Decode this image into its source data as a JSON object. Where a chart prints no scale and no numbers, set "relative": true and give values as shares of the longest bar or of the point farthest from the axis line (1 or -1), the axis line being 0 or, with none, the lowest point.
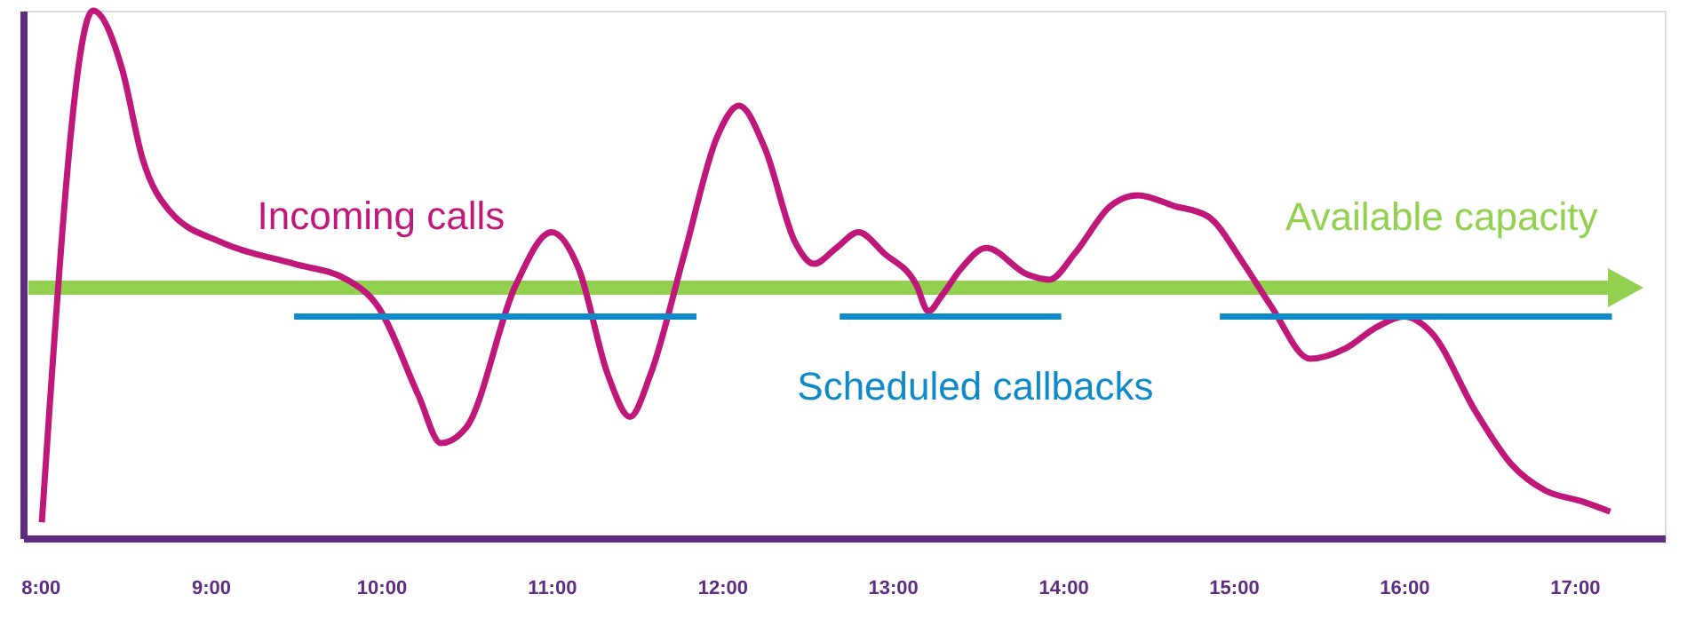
{
  "chart_data": {
    "type": "line",
    "relative": true,
    "xlim": [
      7.9,
      17.53
    ],
    "tick_labels": "x",
    "xticks": [
      {
        "value": 8,
        "label": "8:00"
      },
      {
        "value": 9,
        "label": "9:00"
      },
      {
        "value": 10,
        "label": "10:00"
      },
      {
        "value": 11,
        "label": "11:00"
      },
      {
        "value": 12,
        "label": "12:00"
      },
      {
        "value": 13,
        "label": "13:00"
      },
      {
        "value": 14,
        "label": "14:00"
      },
      {
        "value": 15,
        "label": "15:00"
      },
      {
        "value": 16,
        "label": "16:00"
      },
      {
        "value": 17,
        "label": "17:00"
      }
    ],
    "annotations": [
      "Available capacity"
    ],
    "series": [
      {
        "name": "Incoming calls",
        "color": "#c0187a",
        "x": [
          8.01,
          8.31,
          8.48,
          8.6,
          8.76,
          9.07,
          9.49,
          9.8,
          9.98,
          10.22,
          10.35,
          10.5,
          10.79,
          11.0,
          11.16,
          11.33,
          11.46,
          11.58,
          11.78,
          11.97,
          12.1,
          12.25,
          12.43,
          12.54,
          12.67,
          12.8,
          12.95,
          13.14,
          13.21,
          13.29,
          13.4,
          13.55,
          13.79,
          13.92,
          14.07,
          14.28,
          14.44,
          14.65,
          14.85,
          15.06,
          15.22,
          15.45,
          15.66,
          15.84,
          16.0,
          16.16,
          16.42,
          16.63,
          16.83,
          17.04,
          17.21
        ],
        "values": [
          0.03,
          1.0,
          0.89,
          0.72,
          0.62,
          0.56,
          0.52,
          0.49,
          0.44,
          0.27,
          0.18,
          0.21,
          0.48,
          0.58,
          0.51,
          0.31,
          0.23,
          0.31,
          0.54,
          0.76,
          0.82,
          0.74,
          0.56,
          0.52,
          0.55,
          0.58,
          0.54,
          0.48,
          0.43,
          0.46,
          0.51,
          0.55,
          0.5,
          0.49,
          0.54,
          0.63,
          0.65,
          0.63,
          0.61,
          0.52,
          0.44,
          0.34,
          0.36,
          0.4,
          0.42,
          0.39,
          0.24,
          0.14,
          0.09,
          0.07,
          0.05
        ]
      },
      {
        "name": "Scheduled callbacks",
        "color": "#0e8ac8",
        "x": [
          9.49,
          11.85,
          12.2,
          12.69,
          13.99,
          14.5,
          14.92,
          17.22
        ],
        "values": [
          0.42,
          0.42,
          null,
          0.42,
          0.42,
          null,
          0.42,
          0.42
        ]
      }
    ]
  }
}
